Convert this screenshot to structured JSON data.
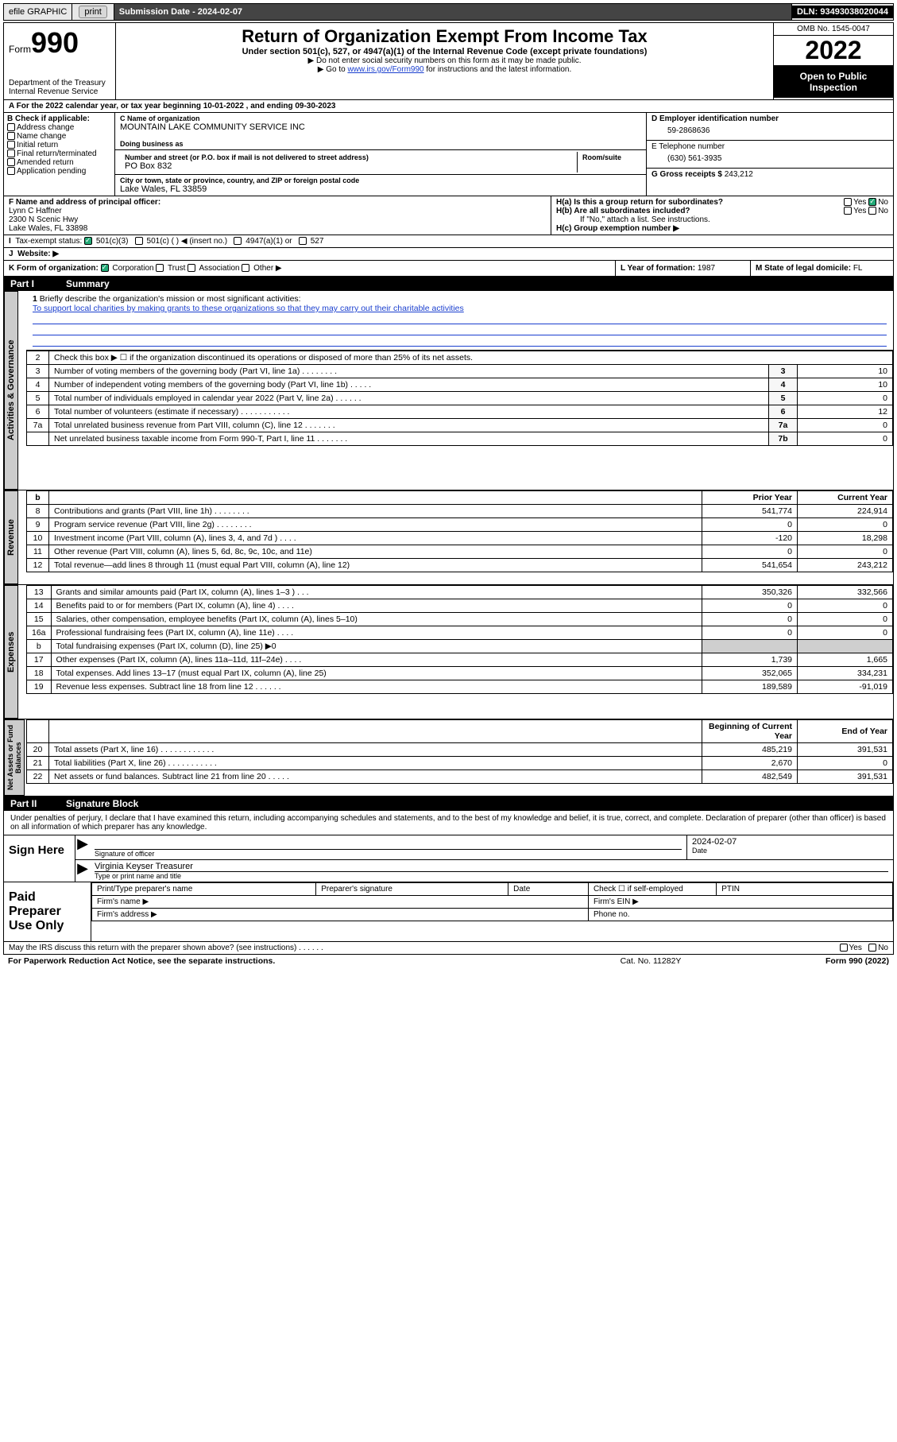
{
  "topbar": {
    "efile_label": "efile GRAPHIC",
    "print_btn": "print",
    "submission_label": "Submission Date - 2024-02-07",
    "dln_label": "DLN: 93493038020044"
  },
  "header": {
    "form_label": "Form",
    "form_number": "990",
    "dept": "Department of the Treasury",
    "irs": "Internal Revenue Service",
    "title": "Return of Organization Exempt From Income Tax",
    "subtitle": "Under section 501(c), 527, or 4947(a)(1) of the Internal Revenue Code (except private foundations)",
    "note1": "▶ Do not enter social security numbers on this form as it may be made public.",
    "note2_pre": "▶ Go to ",
    "note2_link": "www.irs.gov/Form990",
    "note2_post": " for instructions and the latest information.",
    "omb": "OMB No. 1545-0047",
    "year": "2022",
    "open_public": "Open to Public Inspection"
  },
  "line_a": {
    "text_pre": "For the 2022 calendar year, or tax year beginning ",
    "begin": "10-01-2022",
    "text_mid": ", and ending ",
    "end": "09-30-2023"
  },
  "section_b": {
    "label": "B Check if applicable:",
    "items": [
      "Address change",
      "Name change",
      "Initial return",
      "Final return/terminated",
      "Amended return",
      "Application pending"
    ]
  },
  "section_c": {
    "name_lbl": "C Name of organization",
    "name": "MOUNTAIN LAKE COMMUNITY SERVICE INC",
    "dba_lbl": "Doing business as",
    "street_lbl": "Number and street (or P.O. box if mail is not delivered to street address)",
    "room_lbl": "Room/suite",
    "street": "PO Box 832",
    "city_lbl": "City or town, state or province, country, and ZIP or foreign postal code",
    "city": "Lake Wales, FL  33859"
  },
  "section_d": {
    "lbl": "D Employer identification number",
    "val": "59-2868636"
  },
  "section_e": {
    "lbl": "E Telephone number",
    "val": "(630) 561-3935"
  },
  "section_g": {
    "lbl": "G Gross receipts $",
    "val": "243,212"
  },
  "section_f": {
    "lbl": "F Name and address of principal officer:",
    "name": "Lynn C Haffner",
    "addr1": "2300 N Scenic Hwy",
    "addr2": "Lake Wales, FL  33898"
  },
  "section_h": {
    "a": "H(a)  Is this a group return for subordinates?",
    "b": "H(b)  Are all subordinates included?",
    "b_note": "If \"No,\" attach a list. See instructions.",
    "c": "H(c)  Group exemption number ▶",
    "yes": "Yes",
    "no": "No"
  },
  "section_i": {
    "lbl": "Tax-exempt status:",
    "opt1": "501(c)(3)",
    "opt2": "501(c) (   ) ◀ (insert no.)",
    "opt3": "4947(a)(1) or",
    "opt4": "527"
  },
  "section_j": {
    "lbl": "Website: ▶"
  },
  "section_k": {
    "lbl": "K Form of organization:",
    "opts": [
      "Corporation",
      "Trust",
      "Association",
      "Other ▶"
    ]
  },
  "section_l": {
    "lbl": "L Year of formation:",
    "val": "1987"
  },
  "section_m": {
    "lbl": "M State of legal domicile:",
    "val": "FL"
  },
  "part1": {
    "num": "Part I",
    "title": "Summary"
  },
  "mission": {
    "num": "1",
    "prompt": "Briefly describe the organization's mission or most significant activities:",
    "text": "To support local charities by making grants to these organizations so that they may carry out their charitable activities"
  },
  "governance_rows": [
    {
      "n": "2",
      "desc": "Check this box ▶ ☐  if the organization discontinued its operations or disposed of more than 25% of its net assets.",
      "key": "",
      "val": ""
    },
    {
      "n": "3",
      "desc": "Number of voting members of the governing body (Part VI, line 1a)  .    .    .    .    .    .    .    .",
      "key": "3",
      "val": "10"
    },
    {
      "n": "4",
      "desc": "Number of independent voting members of the governing body (Part VI, line 1b)   .    .    .    .    .",
      "key": "4",
      "val": "10"
    },
    {
      "n": "5",
      "desc": "Total number of individuals employed in calendar year 2022 (Part V, line 2a)   .    .    .    .    .    .",
      "key": "5",
      "val": "0"
    },
    {
      "n": "6",
      "desc": "Total number of volunteers (estimate if necessary)   .    .    .    .    .    .    .    .    .    .    .",
      "key": "6",
      "val": "12"
    },
    {
      "n": "7a",
      "desc": "Total unrelated business revenue from Part VIII, column (C), line 12   .    .    .    .    .    .    .",
      "key": "7a",
      "val": "0"
    },
    {
      "n": "",
      "desc": "Net unrelated business taxable income from Form 990-T, Part I, line 11   .    .    .    .    .    .    .",
      "key": "7b",
      "val": "0"
    }
  ],
  "two_col_header": {
    "b": "b",
    "prior": "Prior Year",
    "current": "Current Year"
  },
  "revenue_rows": [
    {
      "n": "8",
      "desc": "Contributions and grants (Part VIII, line 1h)   .    .    .    .    .    .    .    .",
      "prior": "541,774",
      "curr": "224,914"
    },
    {
      "n": "9",
      "desc": "Program service revenue (Part VIII, line 2g)    .    .    .    .    .    .    .    .",
      "prior": "0",
      "curr": "0"
    },
    {
      "n": "10",
      "desc": "Investment income (Part VIII, column (A), lines 3, 4, and 7d )    .    .    .    .",
      "prior": "-120",
      "curr": "18,298"
    },
    {
      "n": "11",
      "desc": "Other revenue (Part VIII, column (A), lines 5, 6d, 8c, 9c, 10c, and 11e)",
      "prior": "0",
      "curr": "0"
    },
    {
      "n": "12",
      "desc": "Total revenue—add lines 8 through 11 (must equal Part VIII, column (A), line 12)",
      "prior": "541,654",
      "curr": "243,212"
    }
  ],
  "expense_rows": [
    {
      "n": "13",
      "desc": "Grants and similar amounts paid (Part IX, column (A), lines 1–3 )   .    .    .",
      "prior": "350,326",
      "curr": "332,566"
    },
    {
      "n": "14",
      "desc": "Benefits paid to or for members (Part IX, column (A), line 4)   .    .    .    .",
      "prior": "0",
      "curr": "0"
    },
    {
      "n": "15",
      "desc": "Salaries, other compensation, employee benefits (Part IX, column (A), lines 5–10)",
      "prior": "0",
      "curr": "0"
    },
    {
      "n": "16a",
      "desc": "Professional fundraising fees (Part IX, column (A), line 11e)   .    .    .    .",
      "prior": "0",
      "curr": "0"
    },
    {
      "n": "b",
      "desc": "Total fundraising expenses (Part IX, column (D), line 25) ▶0",
      "prior": "",
      "curr": "",
      "shade": true
    },
    {
      "n": "17",
      "desc": "Other expenses (Part IX, column (A), lines 11a–11d, 11f–24e)   .    .    .    .",
      "prior": "1,739",
      "curr": "1,665"
    },
    {
      "n": "18",
      "desc": "Total expenses. Add lines 13–17 (must equal Part IX, column (A), line 25)",
      "prior": "352,065",
      "curr": "334,231"
    },
    {
      "n": "19",
      "desc": "Revenue less expenses. Subtract line 18 from line 12   .    .    .    .    .    .",
      "prior": "189,589",
      "curr": "-91,019"
    }
  ],
  "netassets_header": {
    "boy": "Beginning of Current Year",
    "eoy": "End of Year"
  },
  "netassets_rows": [
    {
      "n": "20",
      "desc": "Total assets (Part X, line 16)   .    .    .    .    .    .    .    .    .    .    .    .",
      "prior": "485,219",
      "curr": "391,531"
    },
    {
      "n": "21",
      "desc": "Total liabilities (Part X, line 26)   .    .    .    .    .    .    .    .    .    .    .",
      "prior": "2,670",
      "curr": "0"
    },
    {
      "n": "22",
      "desc": "Net assets or fund balances. Subtract line 21 from line 20   .    .    .    .    .",
      "prior": "482,549",
      "curr": "391,531"
    }
  ],
  "part2": {
    "num": "Part II",
    "title": "Signature Block"
  },
  "penalty": "Under penalties of perjury, I declare that I have examined this return, including accompanying schedules and statements, and to the best of my knowledge and belief, it is true, correct, and complete. Declaration of preparer (other than officer) is based on all information of which preparer has any knowledge.",
  "sign": {
    "label": "Sign Here",
    "sig_lbl": "Signature of officer",
    "date_lbl": "Date",
    "date": "2024-02-07",
    "name": "Virginia Keyser Treasurer",
    "name_lbl": "Type or print name and title"
  },
  "preparer": {
    "label": "Paid Preparer Use Only",
    "col1": "Print/Type preparer's name",
    "col2": "Preparer's signature",
    "col3": "Date",
    "col4": "Check ☐ if self-employed",
    "col5": "PTIN",
    "firm_name": "Firm's name    ▶",
    "firm_ein": "Firm's EIN ▶",
    "firm_addr": "Firm's address ▶",
    "phone": "Phone no."
  },
  "discuss": {
    "q": "May the IRS discuss this return with the preparer shown above? (see instructions)   .    .    .    .    .    .",
    "yes": "Yes",
    "no": "No"
  },
  "footer": {
    "left": "For Paperwork Reduction Act Notice, see the separate instructions.",
    "mid": "Cat. No. 11282Y",
    "right": "Form 990 (2022)"
  },
  "labels": {
    "activities": "Activities & Governance",
    "revenue": "Revenue",
    "expenses": "Expenses",
    "netassets": "Net Assets or Fund Balances"
  },
  "colors": {
    "link": "#1a3fcf",
    "black": "#000000",
    "grey_bg": "#cfcfcf"
  }
}
